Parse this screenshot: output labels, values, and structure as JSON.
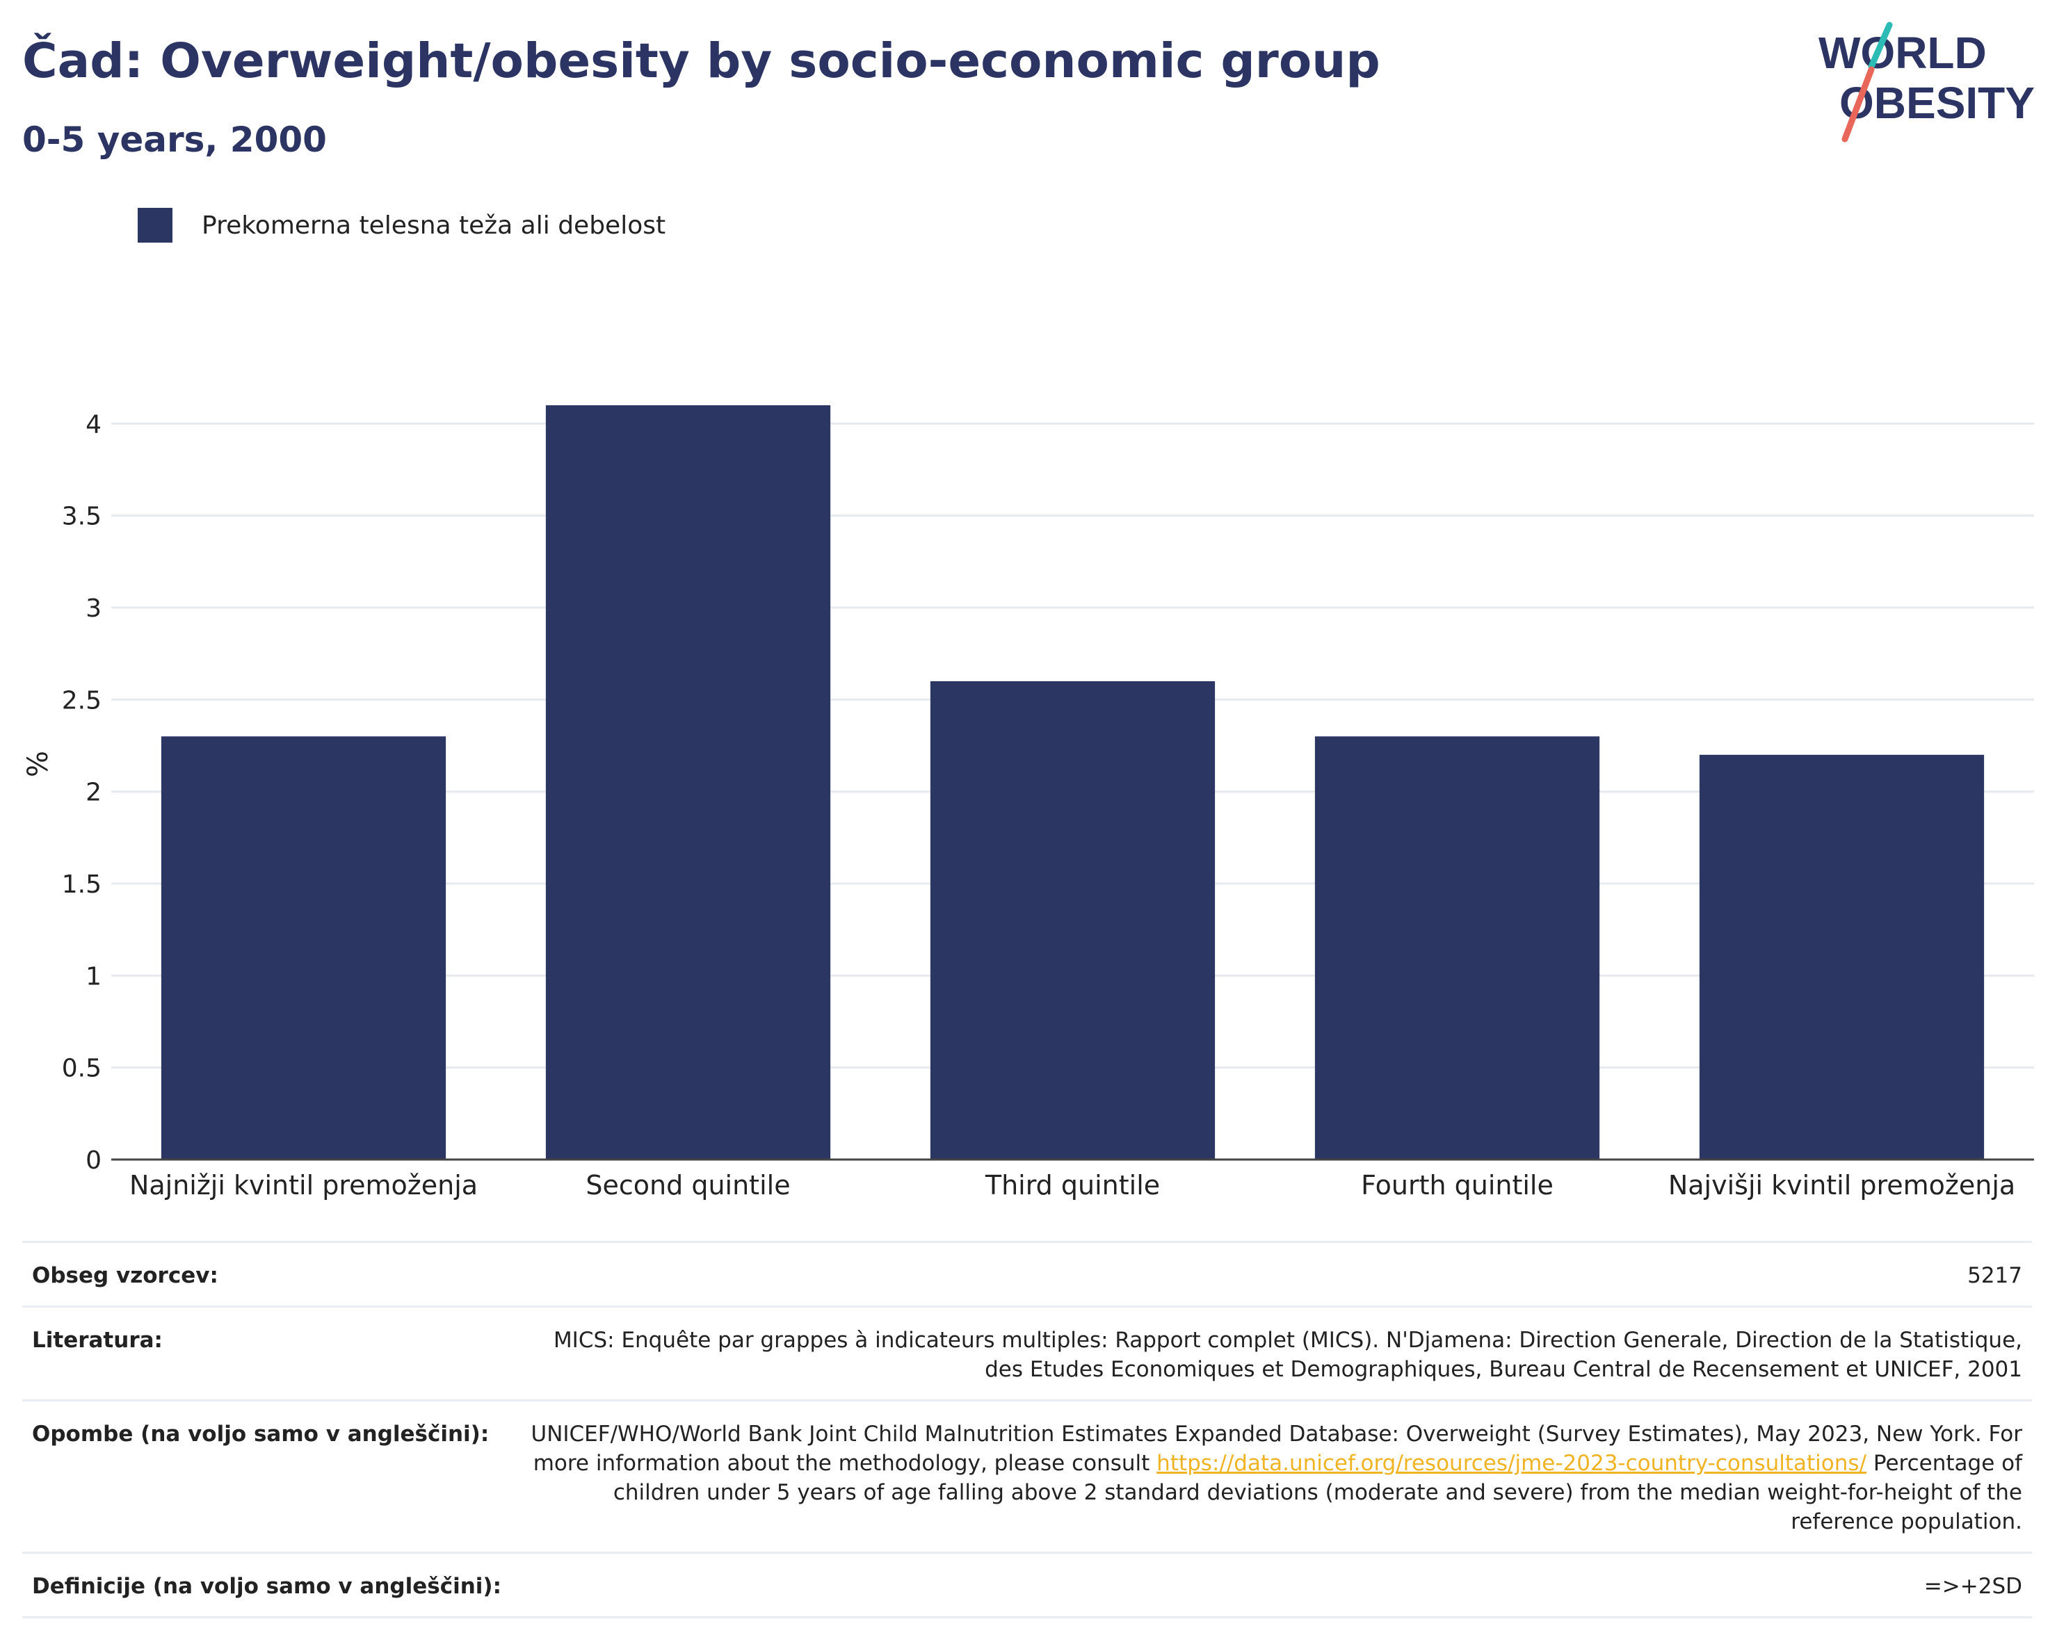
{
  "header": {
    "title": "Čad: Overweight/obesity by socio-economic group",
    "subtitle": "0-5 years, 2000"
  },
  "logo": {
    "line1": "WORLD",
    "line2": "OBESITY"
  },
  "legend": {
    "label": "Prekomerna telesna teža ali debelost",
    "color": "#2b3663"
  },
  "chart_data": {
    "type": "bar",
    "categories": [
      "Najnižji kvintil premoženja",
      "Second quintile",
      "Third quintile",
      "Fourth quintile",
      "Najvišji kvintil premoženja"
    ],
    "series": [
      {
        "name": "Prekomerna telesna teža ali debelost",
        "values": [
          2.3,
          4.1,
          2.6,
          2.3,
          2.2
        ],
        "color": "#2b3663"
      }
    ],
    "ylabel": "%",
    "ylim": [
      0,
      4.3
    ],
    "yticks": [
      0,
      0.5,
      1,
      1.5,
      2,
      2.5,
      3,
      3.5,
      4
    ],
    "yticklabels": [
      "0",
      "0.5",
      "1",
      "1.5",
      "2",
      "2.5",
      "3",
      "3.5",
      "4"
    ],
    "grid": true,
    "legend_position": "top-left"
  },
  "info": {
    "sample_label": "Obseg vzorcev:",
    "sample_value": "5217",
    "references_label": "Literatura:",
    "references_value": "MICS: Enquête par grappes à indicateurs multiples: Rapport complet (MICS). N'Djamena: Direction Generale, Direction de la Statistique, des Etudes Economiques et Demographiques, Bureau Central de Recensement et UNICEF, 2001",
    "notes_label": "Opombe (na voljo samo v angleščini):",
    "notes_text_before": "UNICEF/WHO/World Bank Joint Child Malnutrition Estimates Expanded Database: Overweight (Survey Estimates), May 2023, New York. For more information about the methodology, please consult ",
    "notes_link": "https://data.unicef.org/resources/jme-2023-country-consultations/",
    "notes_text_after": " Percentage of children under 5 years of age falling above 2 standard deviations (moderate and severe) from the median weight-for-height of the reference population.",
    "definitions_label": "Definicije (na voljo samo v angleščini):",
    "definitions_value": "=>+2SD"
  },
  "colors": {
    "title": "#2b3463",
    "bar": "#2b3663",
    "link": "#f0b323",
    "logo_teal": "#2cbcb5",
    "logo_red": "#e9665a"
  }
}
